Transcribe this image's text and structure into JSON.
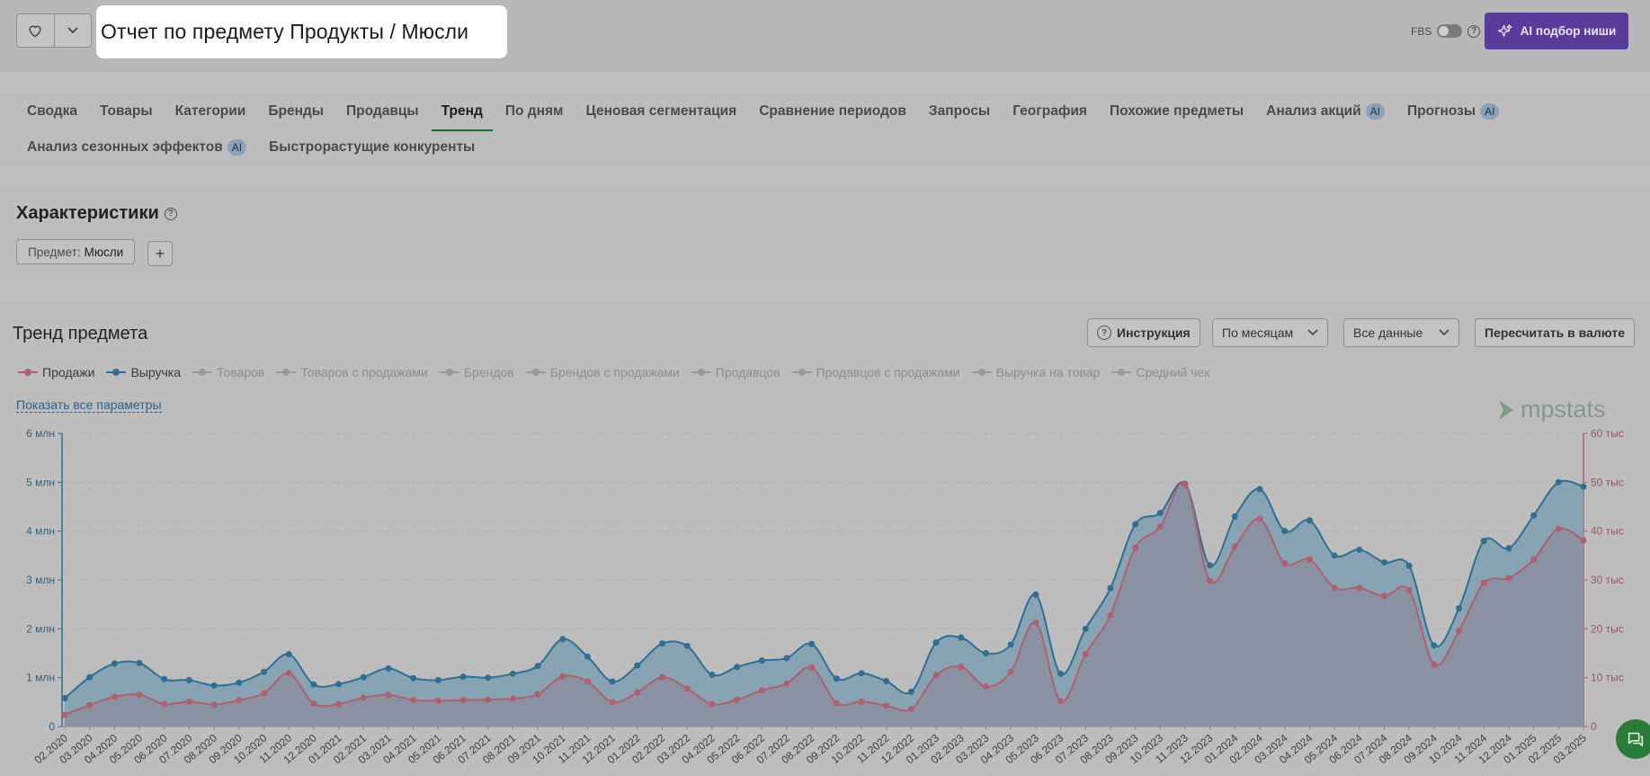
{
  "header": {
    "title": "Отчет по предмету Продукты / Мюсли",
    "fbs_label": "FBS",
    "ai_button": "AI подбор ниши"
  },
  "tabs": {
    "row1": [
      {
        "label": "Сводка"
      },
      {
        "label": "Товары"
      },
      {
        "label": "Категории"
      },
      {
        "label": "Бренды"
      },
      {
        "label": "Продавцы"
      },
      {
        "label": "Тренд",
        "active": true
      },
      {
        "label": "По дням"
      },
      {
        "label": "Ценовая сегментация"
      },
      {
        "label": "Сравнение периодов"
      },
      {
        "label": "Запросы"
      },
      {
        "label": "География"
      },
      {
        "label": "Похожие предметы"
      },
      {
        "label": "Анализ акций",
        "badge": "AI"
      },
      {
        "label": "Прогнозы",
        "badge": "AI"
      }
    ],
    "row2": [
      {
        "label": "Анализ сезонных эффектов",
        "badge": "AI"
      },
      {
        "label": "Быстрорастущие конкуренты"
      }
    ]
  },
  "characteristics": {
    "title": "Характеристики",
    "chip_key": "Предмет:",
    "chip_value": "Мюсли",
    "add": "+"
  },
  "trend": {
    "title": "Тренд предмета",
    "instruction": "Инструкция",
    "period": "По месяцам",
    "data": "Все данные",
    "currency": "Пересчитать в валюте",
    "show_all": "Показать все параметры",
    "logo": "mpstats",
    "legend": [
      {
        "label": "Продажи",
        "on": true,
        "color": "#b0606c"
      },
      {
        "label": "Выручка",
        "on": true,
        "color": "#2f6f93"
      },
      {
        "label": "Товаров",
        "on": false
      },
      {
        "label": "Товаров с продажами",
        "on": false
      },
      {
        "label": "Брендов",
        "on": false
      },
      {
        "label": "Брендов с продажами",
        "on": false
      },
      {
        "label": "Продавцов",
        "on": false
      },
      {
        "label": "Продавцов с продажами",
        "on": false
      },
      {
        "label": "Выручка на товар",
        "on": false
      },
      {
        "label": "Средний чек",
        "on": false
      }
    ]
  },
  "chart_data": {
    "type": "area",
    "categories": [
      "02.2020",
      "03.2020",
      "04.2020",
      "05.2020",
      "06.2020",
      "07.2020",
      "08.2020",
      "09.2020",
      "10.2020",
      "11.2020",
      "12.2020",
      "01.2021",
      "02.2021",
      "03.2021",
      "04.2021",
      "05.2021",
      "06.2021",
      "07.2021",
      "08.2021",
      "09.2021",
      "10.2021",
      "11.2021",
      "12.2021",
      "01.2022",
      "02.2022",
      "03.2022",
      "04.2022",
      "05.2022",
      "06.2022",
      "07.2022",
      "08.2022",
      "09.2022",
      "10.2022",
      "11.2022",
      "12.2022",
      "01.2023",
      "02.2023",
      "03.2023",
      "04.2023",
      "05.2023",
      "06.2023",
      "07.2023",
      "08.2023",
      "09.2023",
      "10.2023",
      "11.2023",
      "12.2023",
      "01.2024",
      "02.2024",
      "03.2024",
      "04.2024",
      "05.2024",
      "06.2024",
      "07.2024",
      "08.2024",
      "09.2024",
      "10.2024",
      "11.2024",
      "12.2024",
      "01.2025",
      "02.2025",
      "03.2025"
    ],
    "y_left": {
      "ticks": [
        "0",
        "1 млн",
        "2 млн",
        "3 млн",
        "4 млн",
        "5 млн",
        "6 млн"
      ],
      "range": [
        0,
        6000000
      ]
    },
    "y_right": {
      "ticks": [
        "0",
        "10 тыс",
        "20 тыс",
        "30 тыс",
        "40 тыс",
        "50 тыс",
        "60 тыс"
      ],
      "range": [
        0,
        60000
      ]
    },
    "series": [
      {
        "name": "Выручка",
        "axis": "left",
        "color": "#2f6f93",
        "values": [
          580000,
          1010000,
          1290000,
          1300000,
          970000,
          950000,
          840000,
          900000,
          1120000,
          1480000,
          860000,
          870000,
          1010000,
          1190000,
          990000,
          950000,
          1020000,
          1000000,
          1080000,
          1240000,
          1790000,
          1430000,
          920000,
          1250000,
          1700000,
          1650000,
          1060000,
          1220000,
          1350000,
          1400000,
          1690000,
          980000,
          1090000,
          930000,
          710000,
          1720000,
          1820000,
          1500000,
          1680000,
          2700000,
          1080000,
          2000000,
          2830000,
          4140000,
          4370000,
          4970000,
          3300000,
          4300000,
          4860000,
          4000000,
          4220000,
          3500000,
          3620000,
          3360000,
          3290000,
          1660000,
          2420000,
          3800000,
          3650000,
          4320000,
          5000000,
          4910000
        ]
      },
      {
        "name": "Продажи",
        "axis": "right",
        "color": "#b0606c",
        "values": [
          2400,
          4400,
          6100,
          6500,
          4600,
          5100,
          4500,
          5400,
          6800,
          10900,
          4700,
          4600,
          5900,
          6500,
          5400,
          5300,
          5400,
          5500,
          5700,
          6600,
          10300,
          9200,
          5000,
          7000,
          10100,
          7800,
          4600,
          5500,
          7400,
          8800,
          12100,
          4800,
          5100,
          4300,
          3600,
          10500,
          12200,
          8200,
          11200,
          21300,
          5200,
          14800,
          22800,
          36600,
          40900,
          49600,
          29800,
          36800,
          42500,
          33400,
          34200,
          28400,
          28400,
          26700,
          27900,
          12700,
          19600,
          29400,
          30400,
          34200,
          40500,
          38100
        ]
      }
    ],
    "grid": true
  }
}
